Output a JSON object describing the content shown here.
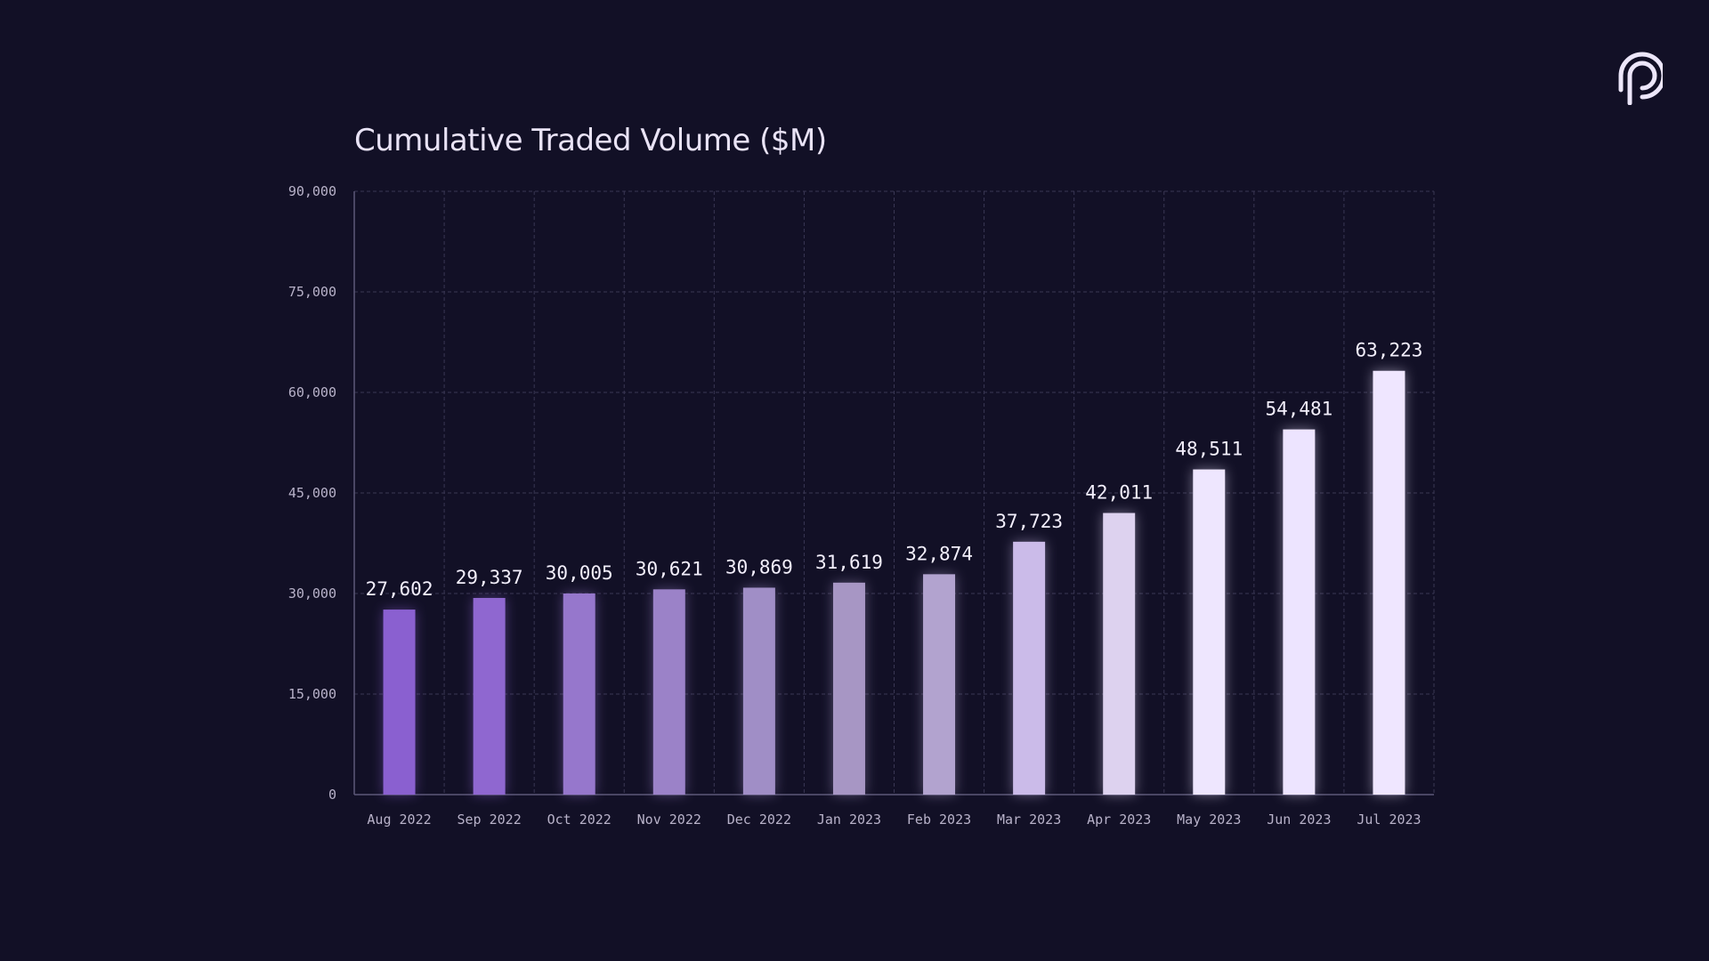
{
  "logo": {
    "icon": "pyth-logo-icon"
  },
  "colors": {
    "background": "#121026",
    "grid": "#3a3754",
    "axis": "#5c5878",
    "tick_text": "#b8b2c9",
    "label_text": "#f3effc",
    "bar_start": "#8a5fd0",
    "bar_end": "#efe6ff"
  },
  "chart_data": {
    "type": "bar",
    "title": "Cumulative Traded Volume ($M)",
    "xlabel": "",
    "ylabel": "",
    "ylim": [
      0,
      90000
    ],
    "yticks": [
      0,
      15000,
      30000,
      45000,
      60000,
      75000,
      90000
    ],
    "ytick_labels": [
      "0",
      "15,000",
      "30,000",
      "45,000",
      "60,000",
      "75,000",
      "90,000"
    ],
    "grid": true,
    "categories": [
      "Aug 2022",
      "Sep 2022",
      "Oct 2022",
      "Nov 2022",
      "Dec 2022",
      "Jan 2023",
      "Feb 2023",
      "Mar 2023",
      "Apr 2023",
      "May 2023",
      "Jun 2023",
      "Jul 2023"
    ],
    "values": [
      27602,
      29337,
      30005,
      30621,
      30869,
      31619,
      32874,
      37723,
      42011,
      48511,
      54481,
      63223
    ],
    "value_labels": [
      "27,602",
      "29,337",
      "30,005",
      "30,621",
      "30,869",
      "31,619",
      "32,874",
      "37,723",
      "42,011",
      "48,511",
      "54,481",
      "63,223"
    ],
    "bar_colors": [
      "#8a60d0",
      "#8f67d0",
      "#9677cc",
      "#9b82c8",
      "#a08ec6",
      "#a796c4",
      "#b2a3cf",
      "#cbbbe9",
      "#ddd2ef",
      "#eee6fe",
      "#ede4ff",
      "#efe6ff"
    ]
  }
}
